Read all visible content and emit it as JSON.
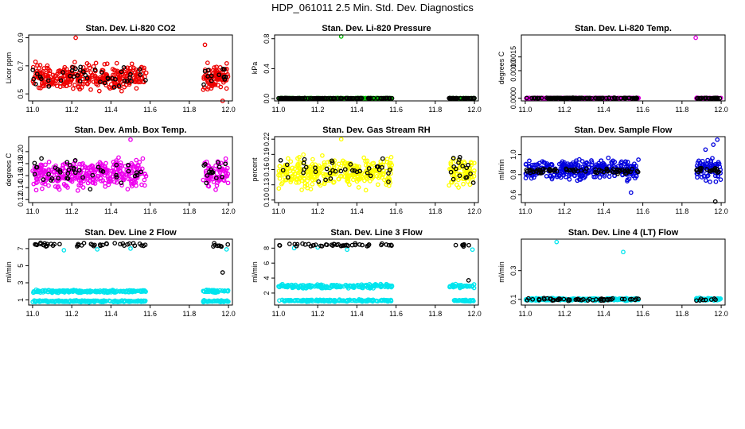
{
  "figure_title": "HDP_061011  2.5 Min. Std. Dev. Diagnostics",
  "chart_data": [
    {
      "type": "scatter",
      "title": "Stan. Dev. Li-820 CO2",
      "ylabel": "Licor ppm",
      "xlabel": "",
      "xlim": [
        10.98,
        12.02
      ],
      "ylim": [
        0.45,
        0.92
      ],
      "xticks": [
        "11.0",
        "11.2",
        "11.4",
        "11.6",
        "11.8",
        "12.0"
      ],
      "xtick_values": [
        11.0,
        11.2,
        11.4,
        11.6,
        11.8,
        12.0
      ],
      "yticks": [
        "0.5",
        "0.7",
        "0.9"
      ],
      "ytick_values": [
        0.5,
        0.7,
        0.9
      ],
      "series": [
        {
          "name": "Li-820 CO2 std",
          "color": "#ee0000",
          "x_ranges": [
            [
              11.0,
              11.58
            ],
            [
              11.87,
              12.0
            ]
          ],
          "center": 0.62,
          "spread": 0.07,
          "count": 400,
          "outliers": [
            [
              11.22,
              0.9
            ],
            [
              11.88,
              0.85
            ],
            [
              11.97,
              0.45
            ]
          ]
        },
        {
          "name": "highlighted",
          "color": "#000000",
          "x_ranges": [
            [
              11.0,
              11.58
            ],
            [
              11.87,
              12.0
            ]
          ],
          "center": 0.62,
          "spread": 0.06,
          "count": 55
        }
      ]
    },
    {
      "type": "scatter",
      "title": "Stan. Dev. Li-820 Pressure",
      "ylabel": "kPa",
      "xlabel": "",
      "xlim": [
        10.98,
        12.02
      ],
      "ylim": [
        -0.03,
        0.85
      ],
      "xticks": [
        "11.0",
        "11.2",
        "11.4",
        "11.6",
        "11.8",
        "12.0"
      ],
      "xtick_values": [
        11.0,
        11.2,
        11.4,
        11.6,
        11.8,
        12.0
      ],
      "yticks": [
        "0.0",
        "0.4",
        "0.8"
      ],
      "ytick_values": [
        0.0,
        0.4,
        0.8
      ],
      "series": [
        {
          "name": "Li-820 Pressure std",
          "color": "#00bb00",
          "x_ranges": [
            [
              11.0,
              11.58
            ],
            [
              11.87,
              12.0
            ]
          ],
          "center": 0.005,
          "spread": 0.002,
          "count": 260,
          "outliers": [
            [
              11.32,
              0.83
            ]
          ]
        },
        {
          "name": "highlighted",
          "color": "#000000",
          "x_ranges": [
            [
              11.0,
              11.58
            ],
            [
              11.87,
              12.0
            ]
          ],
          "center": 0.005,
          "spread": 0.002,
          "count": 150
        }
      ]
    },
    {
      "type": "scatter",
      "title": "Stan. Dev. Li-820 Temp.",
      "ylabel": "degrees C",
      "xlabel": "",
      "xlim": [
        10.98,
        12.02
      ],
      "ylim": [
        -0.0001,
        0.0023
      ],
      "xticks": [
        "11.0",
        "11.2",
        "11.4",
        "11.6",
        "11.8",
        "12.0"
      ],
      "xtick_values": [
        11.0,
        11.2,
        11.4,
        11.6,
        11.8,
        12.0
      ],
      "yticks": [
        "0.0000",
        "0.0010",
        "0.0015"
      ],
      "ytick_values": [
        0.0,
        0.001,
        0.0015
      ],
      "series": [
        {
          "name": "Li-820 Temp std",
          "color": "#dd00dd",
          "x_ranges": [
            [
              11.0,
              11.58
            ],
            [
              11.87,
              12.0
            ]
          ],
          "center": 0.0,
          "spread": 1e-05,
          "count": 260,
          "outliers": [
            [
              11.87,
              0.0022
            ]
          ]
        },
        {
          "name": "highlighted",
          "color": "#000000",
          "x_ranges": [
            [
              11.0,
              11.58
            ],
            [
              11.87,
              12.0
            ]
          ],
          "center": 0.0,
          "spread": 1e-05,
          "count": 150
        }
      ]
    },
    {
      "type": "scatter",
      "title": "Stan. Dev. Amb. Box Temp.",
      "ylabel": "degrees C",
      "xlabel": "",
      "xlim": [
        10.98,
        12.02
      ],
      "ylim": [
        0.115,
        0.225
      ],
      "xticks": [
        "11.0",
        "11.2",
        "11.4",
        "11.6",
        "11.8",
        "12.0"
      ],
      "xtick_values": [
        11.0,
        11.2,
        11.4,
        11.6,
        11.8,
        12.0
      ],
      "yticks": [
        "0.12",
        "0.14",
        "0.16",
        "0.18",
        "0.20"
      ],
      "ytick_values": [
        0.12,
        0.14,
        0.16,
        0.18,
        0.2
      ],
      "series": [
        {
          "name": "Amb. Box Temp std",
          "color": "#ee00ee",
          "x_ranges": [
            [
              11.0,
              11.58
            ],
            [
              11.87,
              12.0
            ]
          ],
          "center": 0.163,
          "spread": 0.018,
          "count": 400,
          "outliers": [
            [
              11.5,
              0.22
            ]
          ]
        },
        {
          "name": "highlighted",
          "color": "#000000",
          "x_ranges": [
            [
              11.0,
              11.58
            ],
            [
              11.87,
              12.0
            ]
          ],
          "center": 0.165,
          "spread": 0.018,
          "count": 55
        }
      ]
    },
    {
      "type": "scatter",
      "title": "Stan. Dev. Gas Stream RH",
      "ylabel": "percent",
      "xlabel": "",
      "xlim": [
        10.98,
        12.02
      ],
      "ylim": [
        0.095,
        0.225
      ],
      "xticks": [
        "11.0",
        "11.2",
        "11.4",
        "11.6",
        "11.8",
        "12.0"
      ],
      "xtick_values": [
        11.0,
        11.2,
        11.4,
        11.6,
        11.8,
        12.0
      ],
      "yticks": [
        "0.10",
        "0.13",
        "0.16",
        "0.19",
        "0.22"
      ],
      "ytick_values": [
        0.1,
        0.13,
        0.16,
        0.19,
        0.22
      ],
      "series": [
        {
          "name": "Gas Stream RH std",
          "color": "#ffff00",
          "x_ranges": [
            [
              11.0,
              11.58
            ],
            [
              11.87,
              12.0
            ]
          ],
          "center": 0.155,
          "spread": 0.022,
          "count": 400,
          "outliers": [
            [
              11.32,
              0.22
            ]
          ]
        },
        {
          "name": "highlighted",
          "color": "#000000",
          "x_ranges": [
            [
              11.0,
              11.58
            ],
            [
              11.87,
              12.0
            ]
          ],
          "center": 0.16,
          "spread": 0.02,
          "count": 55
        }
      ]
    },
    {
      "type": "scatter",
      "title": "Stan. Dev. Sample Flow",
      "ylabel": "ml/min",
      "xlabel": "",
      "xlim": [
        10.98,
        12.02
      ],
      "ylim": [
        0.52,
        1.18
      ],
      "xticks": [
        "11.0",
        "11.2",
        "11.4",
        "11.6",
        "11.8",
        "12.0"
      ],
      "xtick_values": [
        11.0,
        11.2,
        11.4,
        11.6,
        11.8,
        12.0
      ],
      "yticks": [
        "0.6",
        "0.8",
        "1.0"
      ],
      "ytick_values": [
        0.6,
        0.8,
        1.0
      ],
      "series": [
        {
          "name": "Sample Flow std",
          "color": "#0000dd",
          "x_ranges": [
            [
              11.0,
              11.58
            ],
            [
              11.87,
              12.0
            ]
          ],
          "center": 0.85,
          "spread": 0.08,
          "count": 380,
          "outliers": [
            [
              11.54,
              0.62
            ],
            [
              11.96,
              1.1
            ],
            [
              11.98,
              1.15
            ],
            [
              11.92,
              1.05
            ]
          ]
        },
        {
          "name": "highlighted",
          "color": "#000000",
          "x_ranges": [
            [
              11.0,
              11.58
            ],
            [
              11.87,
              12.0
            ]
          ],
          "center": 0.84,
          "spread": 0.02,
          "count": 90,
          "outliers": [
            [
              11.97,
              0.53
            ]
          ]
        }
      ]
    },
    {
      "type": "scatter",
      "title": "Stan. Dev. Line 2 Flow",
      "ylabel": "ml/min",
      "xlabel": "",
      "xlim": [
        10.98,
        12.02
      ],
      "ylim": [
        0.4,
        8.1
      ],
      "xticks": [
        "11.0",
        "11.2",
        "11.4",
        "11.6",
        "11.8",
        "12.0"
      ],
      "xtick_values": [
        11.0,
        11.2,
        11.4,
        11.6,
        11.8,
        12.0
      ],
      "yticks": [
        "1",
        "3",
        "5",
        "7"
      ],
      "ytick_values": [
        1,
        3,
        5,
        7
      ],
      "series": [
        {
          "name": "Line 2 Flow std (band 1)",
          "color": "#00e5ee",
          "x_ranges": [
            [
              11.0,
              11.58
            ],
            [
              11.87,
              12.0
            ]
          ],
          "center": 0.85,
          "spread": 0.08,
          "count": 220
        },
        {
          "name": "Line 2 Flow std (band 2)",
          "color": "#00e5ee",
          "x_ranges": [
            [
              11.0,
              11.58
            ],
            [
              11.87,
              12.0
            ]
          ],
          "center": 2.0,
          "spread": 0.12,
          "count": 220,
          "outliers": [
            [
              11.16,
              6.8
            ],
            [
              11.33,
              6.9
            ],
            [
              11.5,
              7.0
            ],
            [
              11.99,
              6.9
            ]
          ]
        },
        {
          "name": "highlighted",
          "color": "#000000",
          "x_ranges": [
            [
              11.0,
              11.58
            ],
            [
              11.87,
              12.0
            ]
          ],
          "center": 7.45,
          "spread": 0.18,
          "count": 50,
          "outliers": [
            [
              11.97,
              4.2
            ]
          ]
        }
      ]
    },
    {
      "type": "scatter",
      "title": "Stan. Dev. Line 3 Flow",
      "ylabel": "ml/min",
      "xlabel": "",
      "xlim": [
        10.98,
        12.02
      ],
      "ylim": [
        0.4,
        9.2
      ],
      "xticks": [
        "11.0",
        "11.2",
        "11.4",
        "11.6",
        "11.8",
        "12.0"
      ],
      "xtick_values": [
        11.0,
        11.2,
        11.4,
        11.6,
        11.8,
        12.0
      ],
      "yticks": [
        "2",
        "4",
        "6",
        "8"
      ],
      "ytick_values": [
        2,
        4,
        6,
        8
      ],
      "series": [
        {
          "name": "Line 3 Flow std (band 1)",
          "color": "#00e5ee",
          "x_ranges": [
            [
              11.0,
              11.58
            ],
            [
              11.87,
              12.0
            ]
          ],
          "center": 1.0,
          "spread": 0.1,
          "count": 220
        },
        {
          "name": "Line 3 Flow std (band 2)",
          "color": "#00e5ee",
          "x_ranges": [
            [
              11.0,
              11.58
            ],
            [
              11.87,
              12.0
            ]
          ],
          "center": 2.9,
          "spread": 0.2,
          "count": 220,
          "outliers": [
            [
              11.08,
              8.0
            ],
            [
              11.2,
              8.1
            ],
            [
              11.35,
              7.8
            ],
            [
              11.99,
              7.8
            ]
          ]
        },
        {
          "name": "highlighted",
          "color": "#000000",
          "x_ranges": [
            [
              11.0,
              11.58
            ],
            [
              11.87,
              12.0
            ]
          ],
          "center": 8.4,
          "spread": 0.15,
          "count": 50,
          "outliers": [
            [
              11.97,
              3.7
            ]
          ]
        }
      ]
    },
    {
      "type": "scatter",
      "title": "Stan. Dev. Line 4 (LT) Flow",
      "ylabel": "ml/min",
      "xlabel": "",
      "xlim": [
        10.98,
        12.02
      ],
      "ylim": [
        0.06,
        0.52
      ],
      "xticks": [
        "11.0",
        "11.2",
        "11.4",
        "11.6",
        "11.8",
        "12.0"
      ],
      "xtick_values": [
        11.0,
        11.2,
        11.4,
        11.6,
        11.8,
        12.0
      ],
      "yticks": [
        "0.1",
        "0.3"
      ],
      "ytick_values": [
        0.1,
        0.3
      ],
      "series": [
        {
          "name": "Line 4 (LT) Flow std",
          "color": "#00e5ee",
          "x_ranges": [
            [
              11.0,
              11.58
            ],
            [
              11.87,
              12.0
            ]
          ],
          "center": 0.1,
          "spread": 0.007,
          "count": 320,
          "outliers": [
            [
              11.16,
              0.5
            ],
            [
              11.5,
              0.43
            ]
          ]
        },
        {
          "name": "highlighted",
          "color": "#000000",
          "x_ranges": [
            [
              11.0,
              11.58
            ],
            [
              11.87,
              12.0
            ]
          ],
          "center": 0.1,
          "spread": 0.007,
          "count": 60
        }
      ]
    }
  ]
}
